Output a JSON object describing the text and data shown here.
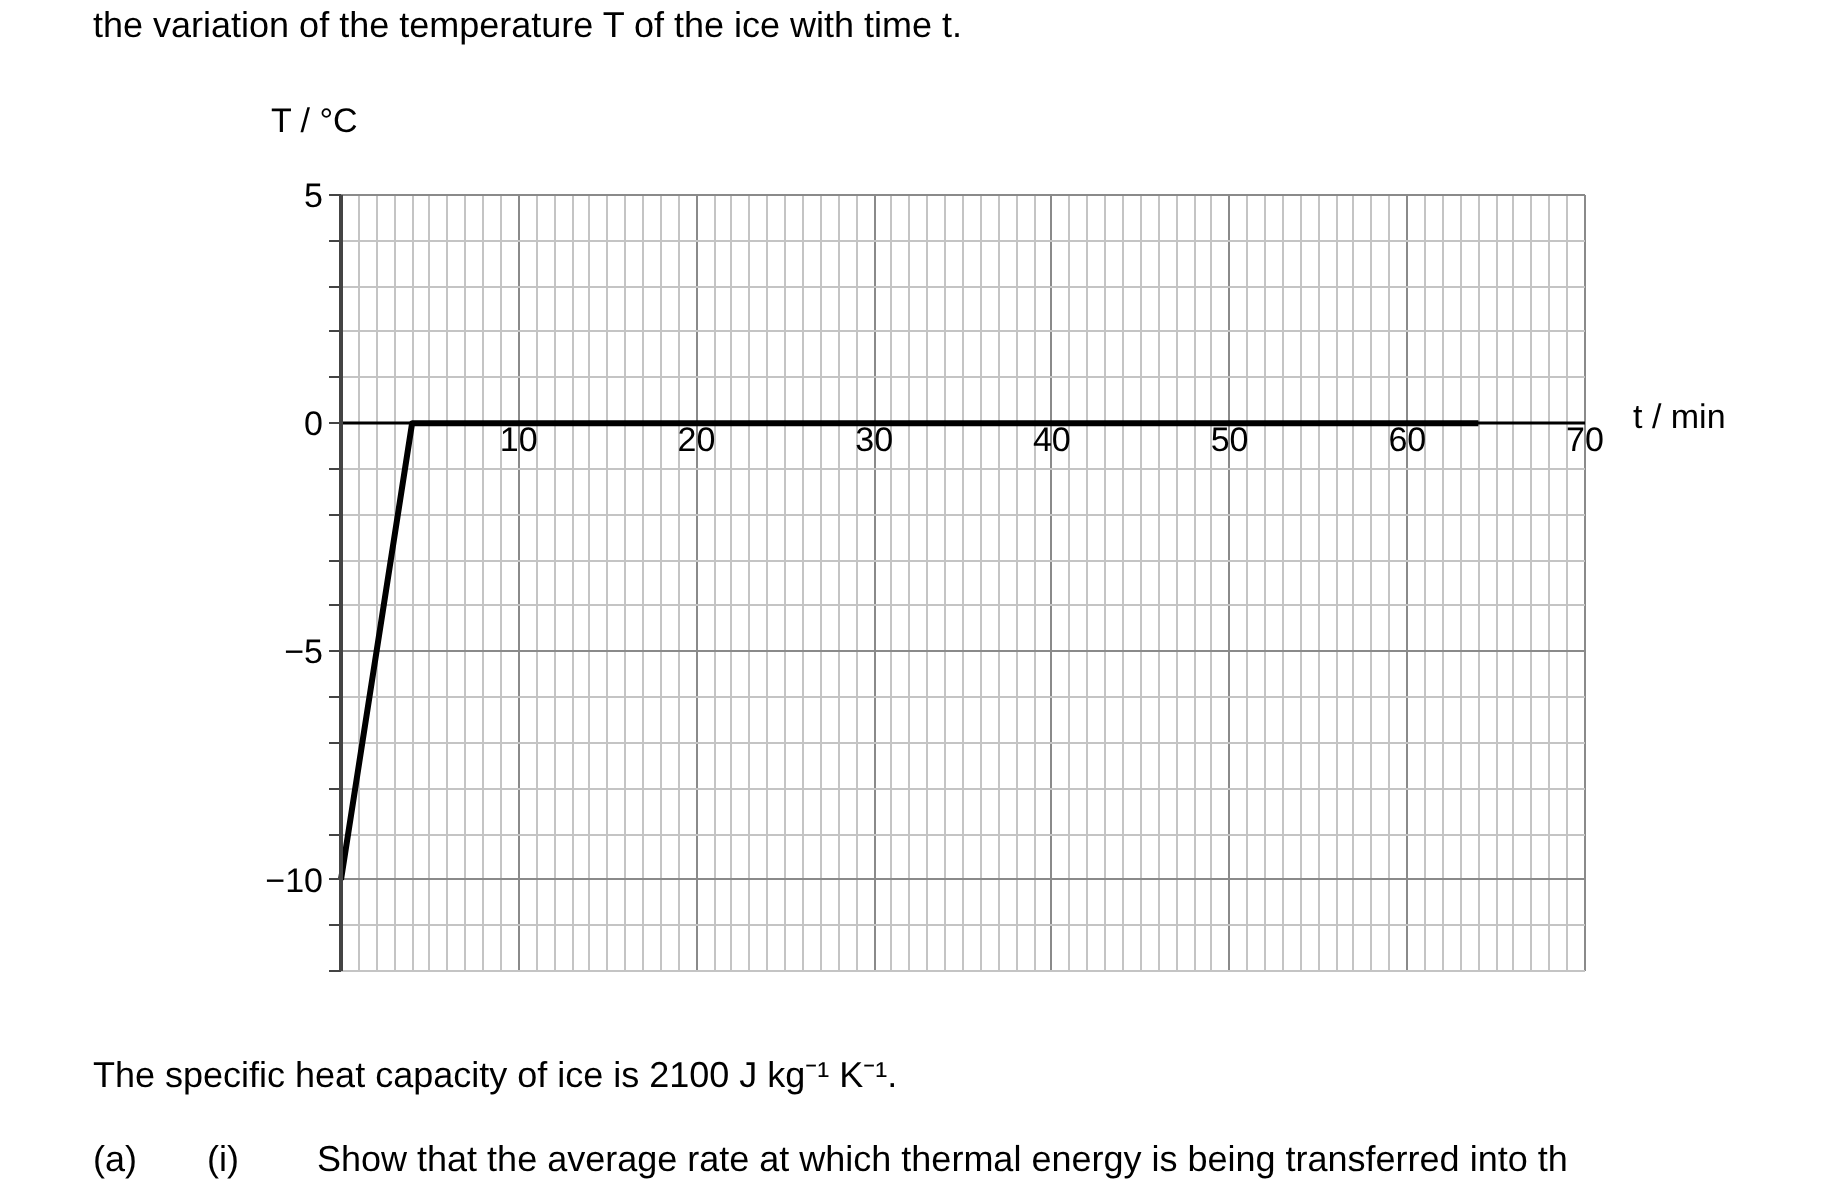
{
  "chart_data": {
    "type": "line",
    "xlabel": "t / min",
    "ylabel": "T / °C",
    "x": [
      0,
      4,
      64
    ],
    "series": [
      {
        "color": "#000000",
        "values": [
          -10,
          0,
          0
        ]
      }
    ],
    "xlim": [
      0,
      70
    ],
    "ylim": [
      -12,
      5
    ],
    "xticks": [
      10,
      20,
      30,
      40,
      50,
      60,
      70
    ],
    "yticks": [
      {
        "value": -12,
        "label": null
      },
      {
        "value": -11,
        "label": null
      },
      -10,
      {
        "value": -9,
        "label": null
      },
      {
        "value": -8,
        "label": null
      },
      {
        "value": -7,
        "label": null
      },
      {
        "value": -6,
        "label": null
      },
      -5,
      {
        "value": -4,
        "label": null
      },
      {
        "value": -3,
        "label": null
      },
      {
        "value": -2,
        "label": null
      },
      {
        "value": -1,
        "label": null
      },
      0,
      {
        "value": 1,
        "label": null
      },
      {
        "value": 2,
        "label": null
      },
      {
        "value": 3,
        "label": null
      },
      {
        "value": 4,
        "label": null
      },
      5
    ],
    "grid": true,
    "marker": "none",
    "line_style": "solid",
    "annotations": [
      "the variation of the temperature T of the ice with time t.",
      "The specific heat capacity of ice is 2100 J kg⁻¹ K⁻¹.",
      "(a)",
      "(i)",
      "Show that the average rate at which thermal energy is being transferred into th"
    ]
  }
}
